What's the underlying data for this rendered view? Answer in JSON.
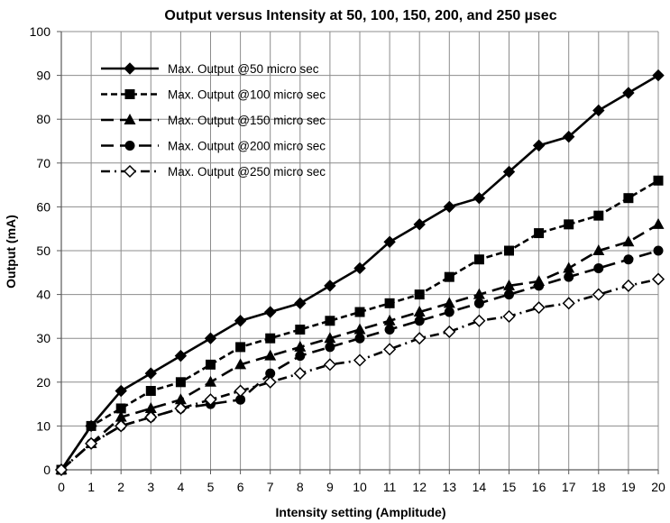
{
  "chart_data": {
    "type": "line",
    "title": "Output versus Intensity at 50, 100, 150, 200, and 250 µsec",
    "xlabel": "Intensity setting (Amplitude)",
    "ylabel": "Output (mA)",
    "xlim": [
      0,
      20
    ],
    "ylim": [
      0,
      100
    ],
    "xticks": [
      0,
      1,
      2,
      3,
      4,
      5,
      6,
      7,
      8,
      9,
      10,
      11,
      12,
      13,
      14,
      15,
      16,
      17,
      18,
      19,
      20
    ],
    "yticks": [
      0,
      10,
      20,
      30,
      40,
      50,
      60,
      70,
      80,
      90,
      100
    ],
    "grid": true,
    "legend_position": "top-left",
    "x": [
      0,
      1,
      2,
      3,
      4,
      5,
      6,
      7,
      8,
      9,
      10,
      11,
      12,
      13,
      14,
      15,
      16,
      17,
      18,
      19,
      20
    ],
    "series": [
      {
        "name": "Max. Output @50 micro sec",
        "marker": "diamond-filled",
        "dash": "solid",
        "values": [
          0,
          10,
          18,
          22,
          26,
          30,
          34,
          36,
          38,
          42,
          46,
          52,
          56,
          60,
          62,
          68,
          74,
          76,
          82,
          86,
          90
        ]
      },
      {
        "name": "Max. Output @100 micro sec",
        "marker": "square-filled",
        "dash": "short-dash",
        "values": [
          0,
          10,
          14,
          18,
          20,
          24,
          28,
          30,
          32,
          34,
          36,
          38,
          40,
          44,
          48,
          50,
          54,
          56,
          58,
          62,
          66
        ]
      },
      {
        "name": "Max. Output @150 micro sec",
        "marker": "triangle-filled",
        "dash": "long-dash",
        "values": [
          0,
          6,
          12,
          14,
          16,
          20,
          24,
          26,
          28,
          30,
          32,
          34,
          36,
          38,
          40,
          42,
          43,
          46,
          50,
          52,
          56
        ]
      },
      {
        "name": "Max. Output @200 micro sec",
        "marker": "circle-filled",
        "dash": "long-dash",
        "values": [
          0,
          6,
          10,
          12,
          14,
          15,
          16,
          22,
          26,
          28,
          30,
          32,
          34,
          36,
          38,
          40,
          42,
          44,
          46,
          48,
          50
        ]
      },
      {
        "name": "Max. Output @250 micro sec",
        "marker": "diamond-open",
        "dash": "dash-dot",
        "values": [
          0,
          6,
          10,
          12,
          14,
          16,
          18,
          20,
          22,
          24,
          25,
          27.5,
          30,
          31.5,
          34,
          35,
          37,
          38,
          40,
          42,
          43.5
        ]
      }
    ]
  }
}
